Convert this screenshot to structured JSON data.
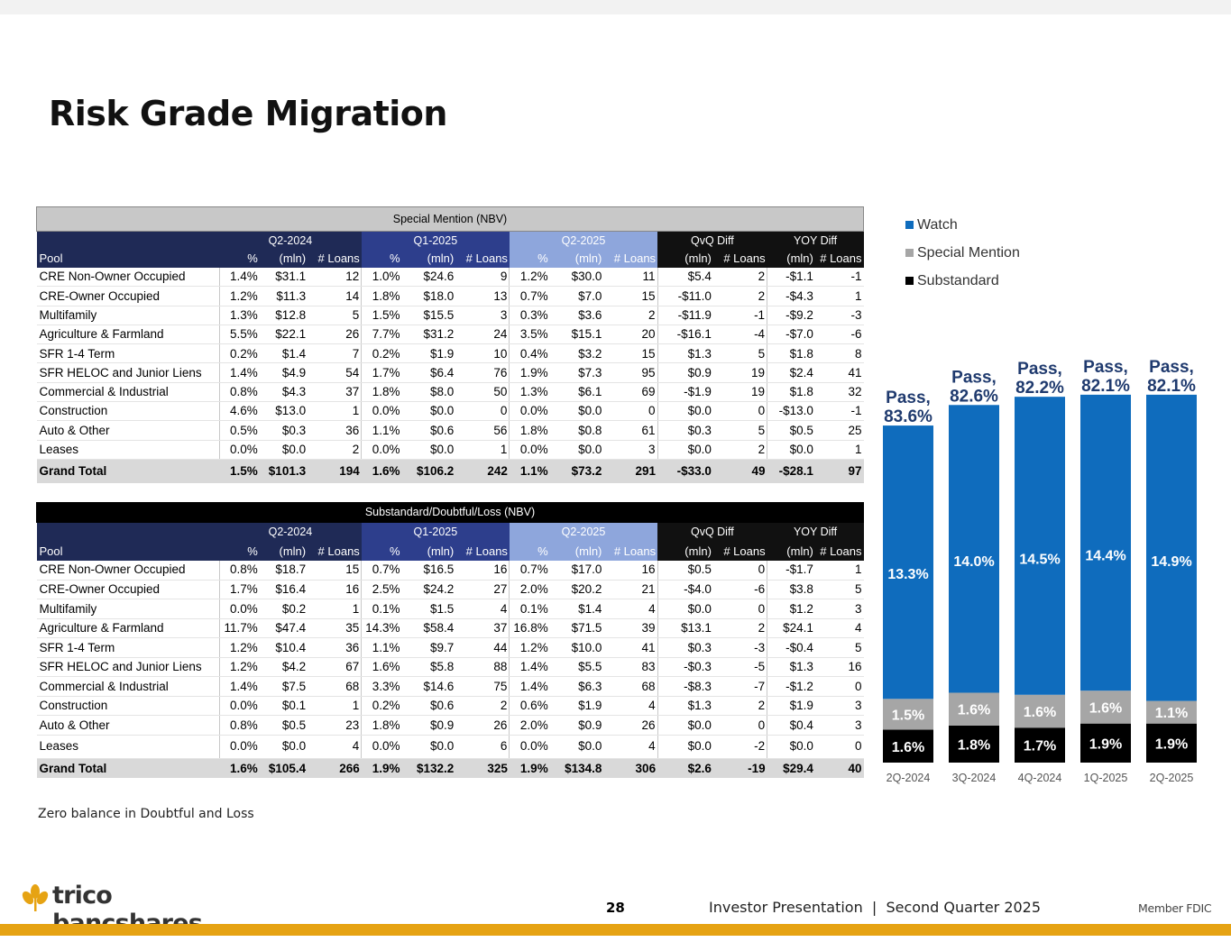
{
  "page": {
    "title": "Risk Grade Migration",
    "note": "Zero balance in Doubtful and Loss",
    "page_number": "28",
    "footer": "Investor Presentation  |  Second Quarter 2025",
    "fdic": "Member FDIC",
    "logo_text": "trico bancshares"
  },
  "colors": {
    "watch": "#0f6cbd",
    "special_mention": "#a6a6a6",
    "substandard": "#000000",
    "pass_label": "#1f3a6e",
    "accent": "#e6a313"
  },
  "table_special": {
    "title": "Special Mention (NBV)",
    "groups": [
      "Q2-2024",
      "Q1-2025",
      "Q2-2025",
      "QvQ Diff",
      "YOY Diff"
    ],
    "columns": [
      "Pool",
      "%",
      "(mln)",
      "# Loans",
      "%",
      "(mln)",
      "# Loans",
      "%",
      "(mln)",
      "# Loans",
      "(mln)",
      "# Loans",
      "(mln)",
      "# Loans"
    ],
    "rows": [
      [
        "CRE Non-Owner Occupied",
        "1.4%",
        "$31.1",
        "12",
        "1.0%",
        "$24.6",
        "9",
        "1.2%",
        "$30.0",
        "11",
        "$5.4",
        "2",
        "-$1.1",
        "-1"
      ],
      [
        "CRE-Owner Occupied",
        "1.2%",
        "$11.3",
        "14",
        "1.8%",
        "$18.0",
        "13",
        "0.7%",
        "$7.0",
        "15",
        "-$11.0",
        "2",
        "-$4.3",
        "1"
      ],
      [
        "Multifamily",
        "1.3%",
        "$12.8",
        "5",
        "1.5%",
        "$15.5",
        "3",
        "0.3%",
        "$3.6",
        "2",
        "-$11.9",
        "-1",
        "-$9.2",
        "-3"
      ],
      [
        "Agriculture & Farmland",
        "5.5%",
        "$22.1",
        "26",
        "7.7%",
        "$31.2",
        "24",
        "3.5%",
        "$15.1",
        "20",
        "-$16.1",
        "-4",
        "-$7.0",
        "-6"
      ],
      [
        "SFR 1-4 Term",
        "0.2%",
        "$1.4",
        "7",
        "0.2%",
        "$1.9",
        "10",
        "0.4%",
        "$3.2",
        "15",
        "$1.3",
        "5",
        "$1.8",
        "8"
      ],
      [
        "SFR HELOC and Junior Liens",
        "1.4%",
        "$4.9",
        "54",
        "1.7%",
        "$6.4",
        "76",
        "1.9%",
        "$7.3",
        "95",
        "$0.9",
        "19",
        "$2.4",
        "41"
      ],
      [
        "Commercial & Industrial",
        "0.8%",
        "$4.3",
        "37",
        "1.8%",
        "$8.0",
        "50",
        "1.3%",
        "$6.1",
        "69",
        "-$1.9",
        "19",
        "$1.8",
        "32"
      ],
      [
        "Construction",
        "4.6%",
        "$13.0",
        "1",
        "0.0%",
        "$0.0",
        "0",
        "0.0%",
        "$0.0",
        "0",
        "$0.0",
        "0",
        "-$13.0",
        "-1"
      ],
      [
        "Auto & Other",
        "0.5%",
        "$0.3",
        "36",
        "1.1%",
        "$0.6",
        "56",
        "1.8%",
        "$0.8",
        "61",
        "$0.3",
        "5",
        "$0.5",
        "25"
      ],
      [
        "Leases",
        "0.0%",
        "$0.0",
        "2",
        "0.0%",
        "$0.0",
        "1",
        "0.0%",
        "$0.0",
        "3",
        "$0.0",
        "2",
        "$0.0",
        "1"
      ]
    ],
    "total": [
      "Grand Total",
      "1.5%",
      "$101.3",
      "194",
      "1.6%",
      "$106.2",
      "242",
      "1.1%",
      "$73.2",
      "291",
      "-$33.0",
      "49",
      "-$28.1",
      "97"
    ]
  },
  "table_substandard": {
    "title": "Substandard/Doubtful/Loss (NBV)",
    "groups": [
      "Q2-2024",
      "Q1-2025",
      "Q2-2025",
      "QvQ Diff",
      "YOY Diff"
    ],
    "columns": [
      "Pool",
      "%",
      "(mln)",
      "# Loans",
      "%",
      "(mln)",
      "# Loans",
      "%",
      "(mln)",
      "# Loans",
      "(mln)",
      "# Loans",
      "(mln)",
      "# Loans"
    ],
    "rows": [
      [
        "CRE Non-Owner Occupied",
        "0.8%",
        "$18.7",
        "15",
        "0.7%",
        "$16.5",
        "16",
        "0.7%",
        "$17.0",
        "16",
        "$0.5",
        "0",
        "-$1.7",
        "1"
      ],
      [
        "CRE-Owner Occupied",
        "1.7%",
        "$16.4",
        "16",
        "2.5%",
        "$24.2",
        "27",
        "2.0%",
        "$20.2",
        "21",
        "-$4.0",
        "-6",
        "$3.8",
        "5"
      ],
      [
        "Multifamily",
        "0.0%",
        "$0.2",
        "1",
        "0.1%",
        "$1.5",
        "4",
        "0.1%",
        "$1.4",
        "4",
        "$0.0",
        "0",
        "$1.2",
        "3"
      ],
      [
        "Agriculture & Farmland",
        "11.7%",
        "$47.4",
        "35",
        "14.3%",
        "$58.4",
        "37",
        "16.8%",
        "$71.5",
        "39",
        "$13.1",
        "2",
        "$24.1",
        "4"
      ],
      [
        "SFR 1-4 Term",
        "1.2%",
        "$10.4",
        "36",
        "1.1%",
        "$9.7",
        "44",
        "1.2%",
        "$10.0",
        "41",
        "$0.3",
        "-3",
        "-$0.4",
        "5"
      ],
      [
        "SFR HELOC and Junior Liens",
        "1.2%",
        "$4.2",
        "67",
        "1.6%",
        "$5.8",
        "88",
        "1.4%",
        "$5.5",
        "83",
        "-$0.3",
        "-5",
        "$1.3",
        "16"
      ],
      [
        "Commercial & Industrial",
        "1.4%",
        "$7.5",
        "68",
        "3.3%",
        "$14.6",
        "75",
        "1.4%",
        "$6.3",
        "68",
        "-$8.3",
        "-7",
        "-$1.2",
        "0"
      ],
      [
        "Construction",
        "0.0%",
        "$0.1",
        "1",
        "0.2%",
        "$0.6",
        "2",
        "0.6%",
        "$1.9",
        "4",
        "$1.3",
        "2",
        "$1.9",
        "3"
      ],
      [
        "Auto & Other",
        "0.8%",
        "$0.5",
        "23",
        "1.8%",
        "$0.9",
        "26",
        "2.0%",
        "$0.9",
        "26",
        "$0.0",
        "0",
        "$0.4",
        "3"
      ],
      [
        "Leases",
        "0.0%",
        "$0.0",
        "4",
        "0.0%",
        "$0.0",
        "6",
        "0.0%",
        "$0.0",
        "4",
        "$0.0",
        "-2",
        "$0.0",
        "0"
      ]
    ],
    "total": [
      "Grand Total",
      "1.6%",
      "$105.4",
      "266",
      "1.9%",
      "$132.2",
      "325",
      "1.9%",
      "$134.8",
      "306",
      "$2.6",
      "-19",
      "$29.4",
      "40"
    ]
  },
  "chart_data": {
    "type": "bar",
    "stacked": true,
    "categories": [
      "2Q-2024",
      "3Q-2024",
      "4Q-2024",
      "1Q-2025",
      "2Q-2025"
    ],
    "series": [
      {
        "name": "Substandard",
        "values": [
          1.6,
          1.8,
          1.7,
          1.9,
          1.9
        ],
        "labels": [
          "1.6%",
          "1.8%",
          "1.7%",
          "1.9%",
          "1.9%"
        ],
        "color": "#000000"
      },
      {
        "name": "Special Mention",
        "values": [
          1.5,
          1.6,
          1.6,
          1.6,
          1.1
        ],
        "labels": [
          "1.5%",
          "1.6%",
          "1.6%",
          "1.6%",
          "1.1%"
        ],
        "color": "#a6a6a6"
      },
      {
        "name": "Watch",
        "values": [
          13.3,
          14.0,
          14.5,
          14.4,
          14.9
        ],
        "labels": [
          "13.3%",
          "14.0%",
          "14.5%",
          "14.4%",
          "14.9%"
        ],
        "color": "#0f6cbd"
      }
    ],
    "legend": [
      "Watch",
      "Special Mention",
      "Substandard"
    ],
    "legend_position": "top-left",
    "pass": [
      83.6,
      82.6,
      82.2,
      82.1,
      82.1
    ],
    "pass_labels": [
      [
        "Pass,",
        "83.6%"
      ],
      [
        "Pass,",
        "82.6%"
      ],
      [
        "Pass,",
        "82.2%"
      ],
      [
        "Pass,",
        "82.1%"
      ],
      [
        "Pass,",
        "82.1%"
      ]
    ],
    "grid": false
  }
}
